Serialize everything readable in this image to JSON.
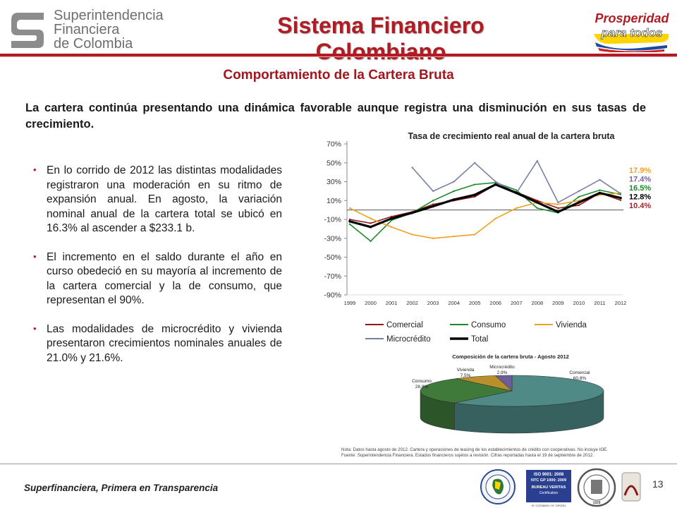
{
  "header": {
    "logo_lines": [
      "Superintendencia",
      "Financiera",
      "de Colombia"
    ],
    "title": "Sistema Financiero Colombiano",
    "logo_right_lines": [
      "Prosperidad",
      "para todos"
    ]
  },
  "subtitle": "Comportamiento de la Cartera Bruta",
  "intro": "La cartera continúa presentando una dinámica favorable aunque registra una disminución en sus tasas de crecimiento.",
  "bullets": [
    "En lo corrido de 2012 las distintas modalidades registraron una moderación en su ritmo de expansión anual. En agosto, la variación nominal anual de la cartera total se ubicó en 16.3% al ascender a $233.1 b.",
    "El incremento en el saldo durante el año en curso obedeció en su mayoría al incremento de la cartera comercial y la de consumo, que representan el 90%.",
    "Las modalidades de microcrédito y vivienda presentaron crecimientos nominales anuales de 21.0% y 21.6%."
  ],
  "chart_data": [
    {
      "type": "line",
      "title": "Tasa de crecimiento real anual de la cartera bruta",
      "xlabel": "",
      "ylabel": "",
      "ylim": [
        -90,
        70
      ],
      "yticks": [
        "70%",
        "50%",
        "30%",
        "10%",
        "-10%",
        "-30%",
        "-50%",
        "-70%",
        "-90%"
      ],
      "x": [
        "1999",
        "2000",
        "2001",
        "2002",
        "2003",
        "2004",
        "2005",
        "2006",
        "2007",
        "2008",
        "2009",
        "2010",
        "2011",
        "2012"
      ],
      "legend_position": "bottom",
      "series": [
        {
          "name": "Comercial",
          "color": "#8b1a1a",
          "values": [
            -10,
            -14,
            -7,
            -2,
            6,
            10,
            14,
            27,
            19,
            10,
            2,
            5,
            18,
            10.4
          ]
        },
        {
          "name": "Consumo",
          "color": "#1a8a2a",
          "values": [
            -15,
            -33,
            -11,
            -3,
            10,
            20,
            27,
            29,
            21,
            2,
            -3,
            14,
            21,
            16.5
          ]
        },
        {
          "name": "Vivienda",
          "color": "#f0a020",
          "values": [
            2,
            -9,
            -18,
            -26,
            -30,
            -28,
            -26,
            -9,
            2,
            8,
            6,
            10,
            16,
            17.9
          ]
        },
        {
          "name": "Microcrédito",
          "color": "#7a7fa8",
          "values": [
            null,
            null,
            null,
            45,
            20,
            30,
            50,
            30,
            18,
            52,
            8,
            20,
            32,
            17.4
          ]
        },
        {
          "name": "Total",
          "color": "#000000",
          "values": [
            -12,
            -18,
            -9,
            -3,
            4,
            11,
            16,
            27,
            18,
            8,
            -2,
            8,
            18,
            12.8
          ]
        }
      ],
      "end_labels": [
        {
          "text": "17.9%",
          "color": "#f0a020"
        },
        {
          "text": "17.4%",
          "color": "#7a5fa8"
        },
        {
          "text": "16.5%",
          "color": "#1a8a2a"
        },
        {
          "text": "12.8%",
          "color": "#000000"
        },
        {
          "text": "10.4%",
          "color": "#b11c24"
        }
      ]
    },
    {
      "type": "pie",
      "title": "Composición de la cartera bruta - Agosto 2012",
      "slices": [
        {
          "name": "Comercial",
          "value": 60.8,
          "label": "60,8%",
          "color": "#4f8a87"
        },
        {
          "name": "Consumo",
          "value": 28.8,
          "label": "28,8%",
          "color": "#3f7a3a"
        },
        {
          "name": "Vivienda",
          "value": 7.5,
          "label": "7,5%",
          "color": "#b88f2a"
        },
        {
          "name": "Microcrédito",
          "value": 2.9,
          "label": "2,9%",
          "color": "#6a5f9a"
        }
      ]
    }
  ],
  "note": {
    "line1": "Nota: Datos hasta agosto de 2012. Cartera y operaciones de leasing de los establecimientos de crédito con cooperativas. No incluye IOE.",
    "line2": "Fuente: Superintendencia Financiera. Estados financieros sujetos a revisión. Cifras reportadas hasta el 19 de septiembre de 2012."
  },
  "footer": {
    "tagline": "Superfinanciera, Primera en Transparencia",
    "page": "13",
    "cert_lines": [
      "ISO 9001: 2008",
      "NTC GP 1000: 2009",
      "BUREAU VERITAS",
      "Certification"
    ],
    "cert_small": "N° CO236539 / N° GP0251",
    "bv_year": "1828"
  },
  "colors": {
    "brand_red": "#b11c24"
  }
}
